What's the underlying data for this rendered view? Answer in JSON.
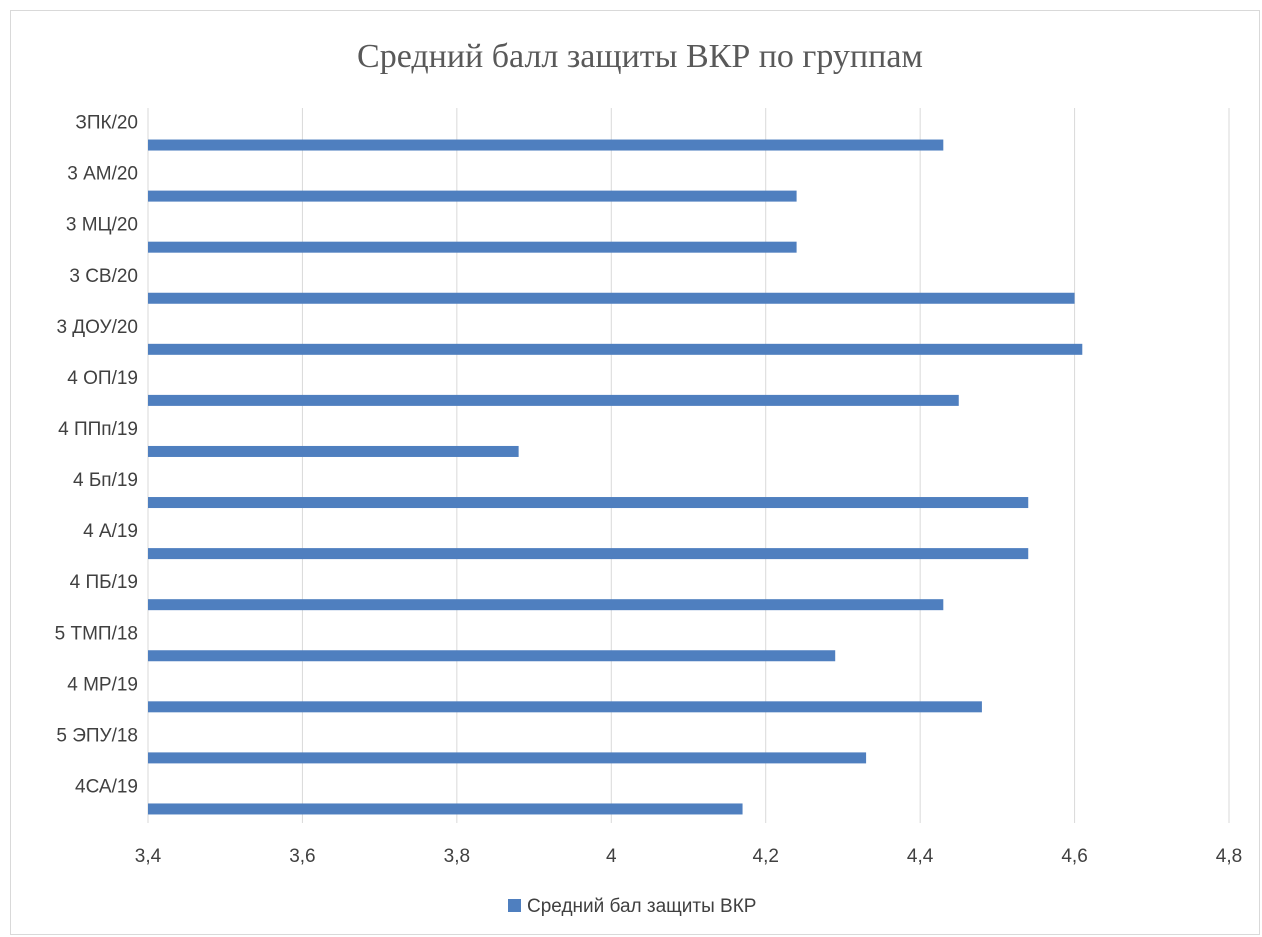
{
  "chart_data": {
    "type": "bar",
    "orientation": "horizontal",
    "title": "Средний балл защиты ВКР по группам",
    "categories": [
      "ЗПК/20",
      "3 АМ/20",
      "3 МЦ/20",
      "3 СВ/20",
      "3 ДОУ/20",
      "4 ОП/19",
      "4 ППп/19",
      "4 Бп/19",
      "4 А/19",
      "4 ПБ/19",
      "5 ТМП/18",
      "4 МР/19",
      "5 ЭПУ/18",
      "4СА/19"
    ],
    "series": [
      {
        "name": "Средний бал защиты ВКР",
        "color": "#4f7fbf",
        "values": [
          4.43,
          4.24,
          4.24,
          4.6,
          4.61,
          4.45,
          3.88,
          4.54,
          4.54,
          4.43,
          4.29,
          4.48,
          4.33,
          4.17
        ]
      }
    ],
    "xlim": [
      3.4,
      4.8
    ],
    "xticks": [
      "3,4",
      "3,6",
      "3,8",
      "4",
      "4,2",
      "4,4",
      "4,6",
      "4,8"
    ],
    "grid": true,
    "legend_position": "bottom"
  }
}
